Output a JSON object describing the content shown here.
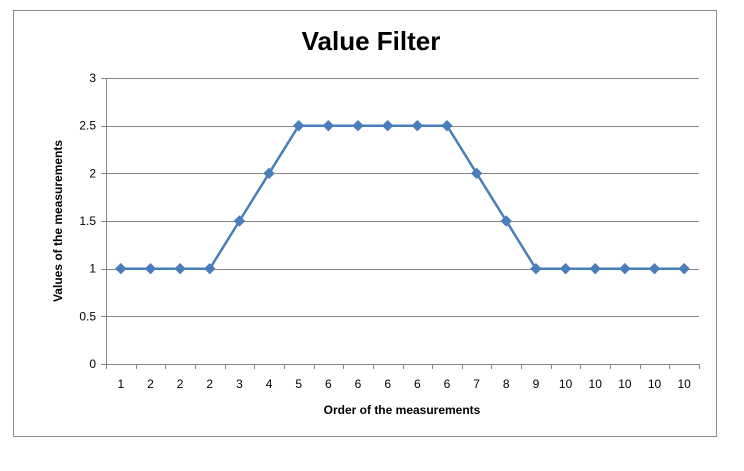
{
  "chart_data": {
    "type": "line",
    "title": "Value Filter",
    "xlabel": "Order of the measurements",
    "ylabel": "Values of the measurements",
    "categories": [
      "1",
      "2",
      "2",
      "2",
      "3",
      "4",
      "5",
      "6",
      "6",
      "6",
      "6",
      "6",
      "7",
      "8",
      "9",
      "10",
      "10",
      "10",
      "10",
      "10"
    ],
    "series": [
      {
        "values": [
          1,
          1,
          1,
          1,
          1.5,
          2,
          2.5,
          2.5,
          2.5,
          2.5,
          2.5,
          2.5,
          2,
          1.5,
          1,
          1,
          1,
          1,
          1,
          1
        ]
      }
    ],
    "ylim": [
      0,
      3
    ],
    "yticks": [
      0,
      0.5,
      1,
      1.5,
      2,
      2.5,
      3
    ],
    "ytick_labels": [
      "0",
      "0.5",
      "1",
      "1.5",
      "2",
      "2.5",
      "3"
    ],
    "grid": "horizontal",
    "legend": "none",
    "line_color": "#4a7ebb",
    "grid_color": "#868686"
  }
}
